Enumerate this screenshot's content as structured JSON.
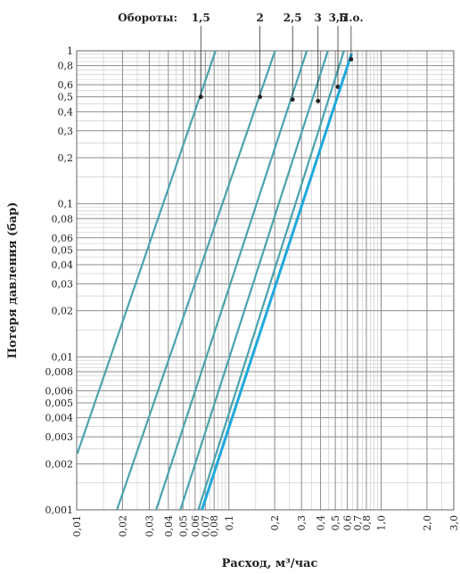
{
  "chart_data": {
    "type": "line",
    "title": "",
    "xlabel": "Расход, м³/час",
    "ylabel": "Потеря давления (бар)",
    "xscale": "log",
    "yscale": "log",
    "xlim": [
      0.01,
      3.0
    ],
    "ylim": [
      0.001,
      1
    ],
    "grid": true,
    "legend_header": "Обороты:",
    "x_ticks": [
      {
        "v": 0.01,
        "t": "0,01"
      },
      {
        "v": 0.02,
        "t": "0,02"
      },
      {
        "v": 0.03,
        "t": "0,03"
      },
      {
        "v": 0.04,
        "t": "0,04"
      },
      {
        "v": 0.05,
        "t": "0,05"
      },
      {
        "v": 0.06,
        "t": "0,06"
      },
      {
        "v": 0.07,
        "t": "0,07"
      },
      {
        "v": 0.08,
        "t": "0,08"
      },
      {
        "v": 0.1,
        "t": "0,1"
      },
      {
        "v": 0.2,
        "t": "0,2"
      },
      {
        "v": 0.3,
        "t": "0,3"
      },
      {
        "v": 0.4,
        "t": "0,4"
      },
      {
        "v": 0.5,
        "t": "0,5"
      },
      {
        "v": 0.6,
        "t": "0,6"
      },
      {
        "v": 0.7,
        "t": "0,7"
      },
      {
        "v": 0.8,
        "t": "0,8"
      },
      {
        "v": 1.0,
        "t": "1,0"
      },
      {
        "v": 2.0,
        "t": "2,0"
      },
      {
        "v": 3.0,
        "t": "3,0"
      }
    ],
    "y_ticks": [
      {
        "v": 1,
        "t": "1"
      },
      {
        "v": 0.8,
        "t": "0,8"
      },
      {
        "v": 0.6,
        "t": "0,6"
      },
      {
        "v": 0.5,
        "t": "0,5"
      },
      {
        "v": 0.4,
        "t": "0,4"
      },
      {
        "v": 0.3,
        "t": "0,3"
      },
      {
        "v": 0.2,
        "t": "0,2"
      },
      {
        "v": 0.1,
        "t": "0,1"
      },
      {
        "v": 0.08,
        "t": "0,08"
      },
      {
        "v": 0.06,
        "t": "0,06"
      },
      {
        "v": 0.05,
        "t": "0,05"
      },
      {
        "v": 0.04,
        "t": "0,04"
      },
      {
        "v": 0.03,
        "t": "0,03"
      },
      {
        "v": 0.02,
        "t": "0,02"
      },
      {
        "v": 0.01,
        "t": "0,01"
      },
      {
        "v": 0.008,
        "t": "0,008"
      },
      {
        "v": 0.006,
        "t": "0,006"
      },
      {
        "v": 0.005,
        "t": "0,005"
      },
      {
        "v": 0.004,
        "t": "0,004"
      },
      {
        "v": 0.003,
        "t": "0,003"
      },
      {
        "v": 0.002,
        "t": "0,002"
      },
      {
        "v": 0.001,
        "t": "0,001"
      }
    ],
    "series": [
      {
        "name": "1,5",
        "color": "#4aa3ad",
        "x": [
          0.0101,
          0.0818
        ],
        "y": [
          0.00233,
          1.0
        ],
        "marker": [
          0.0654,
          0.5
        ]
      },
      {
        "name": "2",
        "color": "#4aa3ad",
        "x": [
          0.0184,
          0.201
        ],
        "y": [
          0.001,
          1.0
        ],
        "marker": [
          0.16,
          0.5
        ]
      },
      {
        "name": "2,5",
        "color": "#4aa3ad",
        "x": [
          0.0333,
          0.325
        ],
        "y": [
          0.001,
          1.0
        ],
        "marker": [
          0.262,
          0.48
        ]
      },
      {
        "name": "3",
        "color": "#4aa3ad",
        "x": [
          0.048,
          0.447
        ],
        "y": [
          0.001,
          1.0
        ],
        "marker": [
          0.385,
          0.47
        ]
      },
      {
        "name": "3,5",
        "color": "#4aa3ad",
        "x": [
          0.063,
          0.57
        ],
        "y": [
          0.001,
          1.0
        ],
        "marker": [
          0.52,
          0.58
        ]
      },
      {
        "name": "П.о.",
        "color": "#1ea9dd",
        "x": [
          0.0665,
          0.64
        ],
        "y": [
          0.001,
          0.96
        ],
        "marker": [
          0.635,
          0.88
        ]
      }
    ]
  }
}
